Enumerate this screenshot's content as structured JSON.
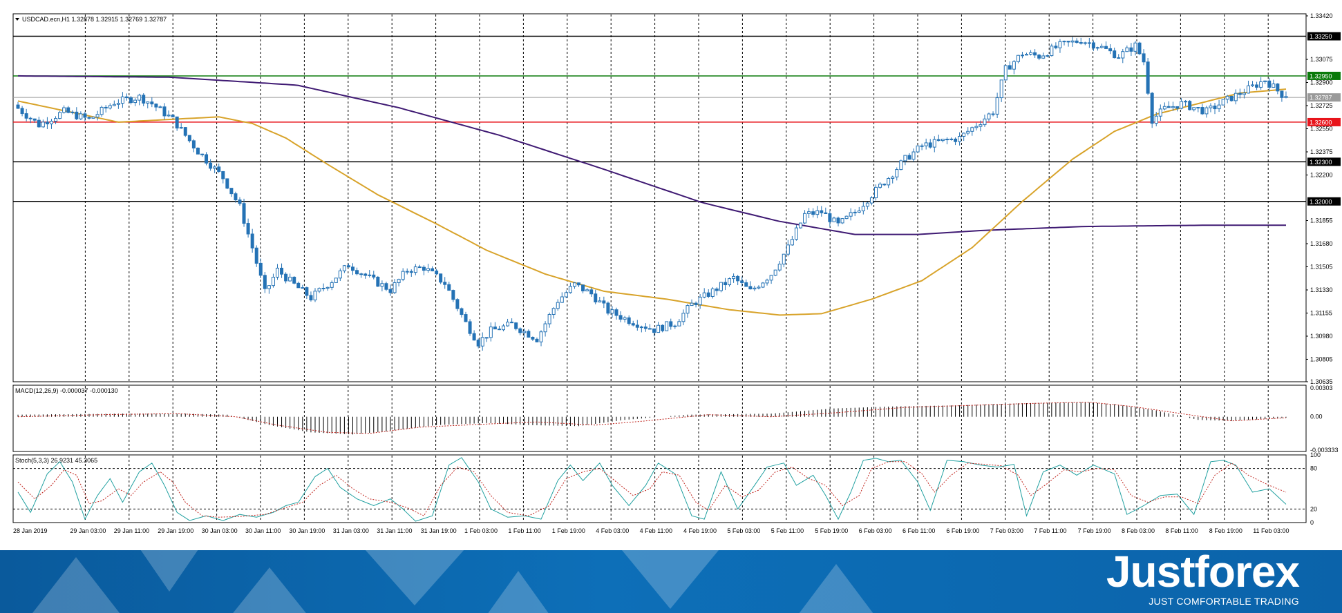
{
  "chart_data": [
    {
      "type": "candlestick",
      "symbol_header": "USDCAD.ecn,H1  1.32878 1.32915 1.32769 1.32787",
      "ylim": [
        1.30635,
        1.3342
      ],
      "y_ticks": [
        "1.33420",
        "1.33075",
        "1.32900",
        "1.32725",
        "1.32550",
        "1.32375",
        "1.32200",
        "1.31855",
        "1.31680",
        "1.31505",
        "1.31330",
        "1.31155",
        "1.30980",
        "1.30805",
        "1.30635"
      ],
      "x_ticks": [
        "28 Jan 2019",
        "29 Jan 03:00",
        "29 Jan 11:00",
        "29 Jan 19:00",
        "30 Jan 03:00",
        "30 Jan 11:00",
        "30 Jan 19:00",
        "31 Jan 03:00",
        "31 Jan 11:00",
        "31 Jan 19:00",
        "1 Feb 03:00",
        "1 Feb 11:00",
        "1 Feb 19:00",
        "4 Feb 03:00",
        "4 Feb 11:00",
        "4 Feb 19:00",
        "5 Feb 03:00",
        "5 Feb 11:00",
        "5 Feb 19:00",
        "6 Feb 03:00",
        "6 Feb 11:00",
        "6 Feb 19:00",
        "7 Feb 03:00",
        "7 Feb 11:00",
        "7 Feb 19:00",
        "8 Feb 03:00",
        "8 Feb 11:00",
        "8 Feb 19:00",
        "11 Feb 03:00"
      ],
      "levels": [
        {
          "value": 1.3325,
          "label": "1.33250",
          "color": "#000000"
        },
        {
          "value": 1.3295,
          "label": "1.32950",
          "color": "#0a7a0a"
        },
        {
          "value": 1.32787,
          "label": "1.32787",
          "color": "#9a9a9a"
        },
        {
          "value": 1.326,
          "label": "1.32600",
          "color": "#e8141b"
        },
        {
          "value": 1.323,
          "label": "1.32300",
          "color": "#000000"
        },
        {
          "value": 1.32,
          "label": "1.32000",
          "color": "#000000"
        }
      ],
      "anchors": [
        [
          0,
          1.3273
        ],
        [
          6,
          1.3258
        ],
        [
          12,
          1.3268
        ],
        [
          18,
          1.3262
        ],
        [
          24,
          1.3275
        ],
        [
          30,
          1.3279
        ],
        [
          33,
          1.3274
        ],
        [
          38,
          1.3262
        ],
        [
          44,
          1.3238
        ],
        [
          50,
          1.3218
        ],
        [
          54,
          1.3196
        ],
        [
          57,
          1.3165
        ],
        [
          60,
          1.3131
        ],
        [
          63,
          1.3148
        ],
        [
          67,
          1.3137
        ],
        [
          71,
          1.3127
        ],
        [
          76,
          1.314
        ],
        [
          80,
          1.3152
        ],
        [
          86,
          1.314
        ],
        [
          90,
          1.3133
        ],
        [
          94,
          1.3148
        ],
        [
          98,
          1.315
        ],
        [
          103,
          1.3138
        ],
        [
          108,
          1.3108
        ],
        [
          111,
          1.3093
        ],
        [
          114,
          1.3102
        ],
        [
          119,
          1.3107
        ],
        [
          125,
          1.3096
        ],
        [
          130,
          1.3125
        ],
        [
          134,
          1.3137
        ],
        [
          138,
          1.313
        ],
        [
          142,
          1.3117
        ],
        [
          147,
          1.311
        ],
        [
          153,
          1.3103
        ],
        [
          158,
          1.3108
        ],
        [
          162,
          1.3122
        ],
        [
          167,
          1.3132
        ],
        [
          172,
          1.3142
        ],
        [
          176,
          1.3132
        ],
        [
          181,
          1.3145
        ],
        [
          185,
          1.3165
        ],
        [
          189,
          1.319
        ],
        [
          193,
          1.3192
        ],
        [
          197,
          1.3182
        ],
        [
          201,
          1.3192
        ],
        [
          205,
          1.3205
        ],
        [
          209,
          1.3218
        ],
        [
          213,
          1.3232
        ],
        [
          217,
          1.3242
        ],
        [
          221,
          1.3245
        ],
        [
          226,
          1.3248
        ],
        [
          230,
          1.3258
        ],
        [
          234,
          1.3268
        ],
        [
          237,
          1.33
        ],
        [
          241,
          1.3312
        ],
        [
          245,
          1.331
        ],
        [
          250,
          1.3318
        ],
        [
          255,
          1.3322
        ],
        [
          259,
          1.3318
        ],
        [
          264,
          1.331
        ],
        [
          268,
          1.3318
        ],
        [
          270,
          1.3306
        ],
        [
          272,
          1.3262
        ],
        [
          275,
          1.327
        ],
        [
          279,
          1.3274
        ],
        [
          285,
          1.3268
        ],
        [
          290,
          1.3277
        ],
        [
          295,
          1.3285
        ],
        [
          299,
          1.3292
        ],
        [
          303,
          1.3281
        ]
      ],
      "ma_slow": [
        [
          0,
          1.3295
        ],
        [
          60,
          1.3294
        ],
        [
          110,
          1.3288
        ],
        [
          150,
          1.3271
        ],
        [
          190,
          1.325
        ],
        [
          230,
          1.3225
        ],
        [
          270,
          1.3199
        ],
        [
          300,
          1.3185
        ],
        [
          330,
          1.3175
        ],
        [
          355,
          1.3175
        ],
        [
          380,
          1.3178
        ],
        [
          420,
          1.3181
        ],
        [
          470,
          1.3182
        ],
        [
          500,
          1.3182
        ]
      ],
      "ma_slow_extent": [
        0,
        303
      ],
      "ma_fast": [
        [
          0,
          1.3276
        ],
        [
          12,
          1.3268
        ],
        [
          24,
          1.326
        ],
        [
          36,
          1.3262
        ],
        [
          48,
          1.3264
        ],
        [
          56,
          1.3259
        ],
        [
          64,
          1.3248
        ],
        [
          74,
          1.3228
        ],
        [
          86,
          1.3205
        ],
        [
          100,
          1.3183
        ],
        [
          112,
          1.3163
        ],
        [
          126,
          1.3145
        ],
        [
          140,
          1.3132
        ],
        [
          155,
          1.3126
        ],
        [
          170,
          1.3118
        ],
        [
          182,
          1.3114
        ],
        [
          192,
          1.3115
        ],
        [
          204,
          1.3126
        ],
        [
          216,
          1.314
        ],
        [
          228,
          1.3165
        ],
        [
          240,
          1.32
        ],
        [
          252,
          1.3232
        ],
        [
          262,
          1.3253
        ],
        [
          272,
          1.3266
        ],
        [
          282,
          1.3274
        ],
        [
          292,
          1.3282
        ],
        [
          303,
          1.3285
        ]
      ],
      "panel_color": "#2472b5"
    },
    {
      "type": "bar",
      "header": "MACD(12,26,9) -0.000037 -0.000130",
      "ylim": [
        -0.003333,
        0.00303
      ],
      "y_ticks": [
        "0.00303",
        "0.00",
        "-0.003333"
      ],
      "hist": [
        [
          0,
          0.0002
        ],
        [
          25,
          0.0003
        ],
        [
          40,
          0.0003
        ],
        [
          50,
          0.0002
        ],
        [
          60,
          -0.0008
        ],
        [
          70,
          -0.0015
        ],
        [
          80,
          -0.0017
        ],
        [
          88,
          -0.0014
        ],
        [
          100,
          -0.0008
        ],
        [
          112,
          -0.0006
        ],
        [
          122,
          -0.0008
        ],
        [
          134,
          -0.0009
        ],
        [
          145,
          -0.0003
        ],
        [
          160,
          0.0002
        ],
        [
          180,
          0.0003
        ],
        [
          195,
          0.0008
        ],
        [
          210,
          0.001
        ],
        [
          225,
          0.0011
        ],
        [
          240,
          0.0013
        ],
        [
          255,
          0.0014
        ],
        [
          262,
          0.0012
        ],
        [
          272,
          0.0006
        ],
        [
          282,
          -0.0003
        ],
        [
          290,
          -0.0004
        ],
        [
          303,
          -0.0001
        ]
      ],
      "signal": [
        [
          0,
          0.0
        ],
        [
          20,
          0.0002
        ],
        [
          38,
          0.0003
        ],
        [
          52,
          0.0
        ],
        [
          62,
          -0.0008
        ],
        [
          74,
          -0.0015
        ],
        [
          84,
          -0.0016
        ],
        [
          96,
          -0.001
        ],
        [
          112,
          -0.0007
        ],
        [
          124,
          -0.0005
        ],
        [
          138,
          -0.0008
        ],
        [
          150,
          -0.0004
        ],
        [
          165,
          0.0002
        ],
        [
          180,
          0.0
        ],
        [
          196,
          0.0004
        ],
        [
          212,
          0.0009
        ],
        [
          228,
          0.0011
        ],
        [
          244,
          0.0013
        ],
        [
          256,
          0.0014
        ],
        [
          266,
          0.001
        ],
        [
          278,
          0.0003
        ],
        [
          290,
          -0.0004
        ],
        [
          303,
          -0.0001
        ]
      ]
    },
    {
      "type": "line",
      "header": "Stoch(5,3,3) 26.9231 45.3065",
      "ylim": [
        0,
        100
      ],
      "y_ticks": [
        "100",
        "80",
        "20",
        "0"
      ],
      "levels": [
        80,
        20
      ],
      "k_line": [
        [
          0,
          45
        ],
        [
          3,
          15
        ],
        [
          7,
          72
        ],
        [
          10,
          90
        ],
        [
          13,
          60
        ],
        [
          16,
          5
        ],
        [
          19,
          40
        ],
        [
          22,
          65
        ],
        [
          25,
          30
        ],
        [
          29,
          75
        ],
        [
          32,
          88
        ],
        [
          35,
          55
        ],
        [
          38,
          15
        ],
        [
          41,
          3
        ],
        [
          45,
          10
        ],
        [
          49,
          3
        ],
        [
          53,
          12
        ],
        [
          57,
          8
        ],
        [
          61,
          15
        ],
        [
          64,
          25
        ],
        [
          67,
          30
        ],
        [
          71,
          68
        ],
        [
          74,
          80
        ],
        [
          77,
          52
        ],
        [
          81,
          35
        ],
        [
          85,
          25
        ],
        [
          89,
          35
        ],
        [
          92,
          20
        ],
        [
          95,
          2
        ],
        [
          99,
          10
        ],
        [
          103,
          85
        ],
        [
          106,
          96
        ],
        [
          110,
          60
        ],
        [
          113,
          20
        ],
        [
          117,
          8
        ],
        [
          121,
          10
        ],
        [
          125,
          5
        ],
        [
          129,
          62
        ],
        [
          132,
          85
        ],
        [
          135,
          62
        ],
        [
          139,
          88
        ],
        [
          142,
          55
        ],
        [
          146,
          25
        ],
        [
          150,
          55
        ],
        [
          153,
          88
        ],
        [
          157,
          72
        ],
        [
          161,
          10
        ],
        [
          164,
          5
        ],
        [
          168,
          75
        ],
        [
          172,
          20
        ],
        [
          176,
          55
        ],
        [
          179,
          82
        ],
        [
          183,
          88
        ],
        [
          186,
          55
        ],
        [
          190,
          70
        ],
        [
          193,
          40
        ],
        [
          196,
          5
        ],
        [
          199,
          45
        ],
        [
          202,
          92
        ],
        [
          205,
          95
        ],
        [
          208,
          90
        ],
        [
          211,
          92
        ],
        [
          215,
          60
        ],
        [
          218,
          18
        ],
        [
          222,
          92
        ],
        [
          226,
          90
        ],
        [
          230,
          85
        ],
        [
          234,
          82
        ],
        [
          238,
          86
        ],
        [
          241,
          10
        ],
        [
          245,
          75
        ],
        [
          249,
          85
        ],
        [
          253,
          70
        ],
        [
          257,
          85
        ],
        [
          262,
          72
        ],
        [
          265,
          12
        ],
        [
          269,
          25
        ],
        [
          273,
          40
        ],
        [
          277,
          42
        ],
        [
          281,
          12
        ],
        [
          285,
          90
        ],
        [
          288,
          92
        ],
        [
          291,
          85
        ],
        [
          295,
          45
        ],
        [
          299,
          50
        ],
        [
          303,
          27
        ]
      ],
      "d_line": [
        [
          0,
          60
        ],
        [
          4,
          35
        ],
        [
          8,
          55
        ],
        [
          11,
          78
        ],
        [
          14,
          70
        ],
        [
          17,
          28
        ],
        [
          20,
          32
        ],
        [
          24,
          50
        ],
        [
          27,
          40
        ],
        [
          30,
          60
        ],
        [
          34,
          75
        ],
        [
          37,
          60
        ],
        [
          40,
          30
        ],
        [
          44,
          10
        ],
        [
          48,
          8
        ],
        [
          53,
          9
        ],
        [
          59,
          12
        ],
        [
          64,
          22
        ],
        [
          68,
          30
        ],
        [
          72,
          55
        ],
        [
          76,
          70
        ],
        [
          80,
          50
        ],
        [
          84,
          35
        ],
        [
          89,
          30
        ],
        [
          93,
          22
        ],
        [
          97,
          10
        ],
        [
          101,
          55
        ],
        [
          105,
          82
        ],
        [
          109,
          75
        ],
        [
          113,
          40
        ],
        [
          117,
          15
        ],
        [
          122,
          10
        ],
        [
          127,
          25
        ],
        [
          131,
          65
        ],
        [
          135,
          75
        ],
        [
          139,
          80
        ],
        [
          143,
          60
        ],
        [
          147,
          40
        ],
        [
          151,
          50
        ],
        [
          154,
          75
        ],
        [
          158,
          70
        ],
        [
          162,
          30
        ],
        [
          165,
          18
        ],
        [
          169,
          55
        ],
        [
          173,
          38
        ],
        [
          177,
          48
        ],
        [
          181,
          75
        ],
        [
          185,
          82
        ],
        [
          189,
          65
        ],
        [
          193,
          55
        ],
        [
          197,
          25
        ],
        [
          201,
          40
        ],
        [
          204,
          80
        ],
        [
          208,
          90
        ],
        [
          212,
          90
        ],
        [
          216,
          72
        ],
        [
          219,
          45
        ],
        [
          223,
          70
        ],
        [
          227,
          88
        ],
        [
          231,
          86
        ],
        [
          235,
          84
        ],
        [
          239,
          70
        ],
        [
          242,
          40
        ],
        [
          246,
          58
        ],
        [
          250,
          78
        ],
        [
          254,
          75
        ],
        [
          258,
          80
        ],
        [
          262,
          78
        ],
        [
          266,
          40
        ],
        [
          270,
          30
        ],
        [
          274,
          38
        ],
        [
          278,
          38
        ],
        [
          282,
          28
        ],
        [
          286,
          70
        ],
        [
          290,
          88
        ],
        [
          294,
          70
        ],
        [
          299,
          55
        ],
        [
          303,
          45
        ]
      ]
    }
  ],
  "banner": {
    "logo": "Justforex",
    "tagline": "JUST COMFORTABLE TRADING",
    "background": "#0b64ab"
  }
}
